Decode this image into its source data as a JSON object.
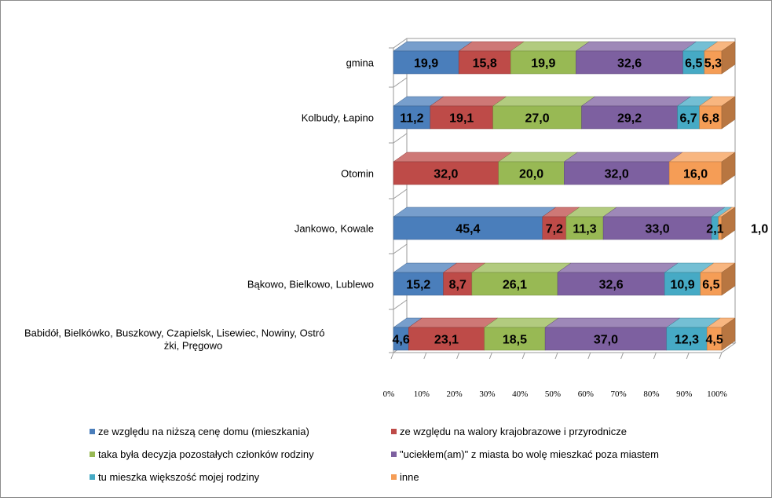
{
  "chart_data": {
    "type": "bar",
    "orientation": "horizontal",
    "stacked": "percent",
    "style": "3d",
    "title": "",
    "xlabel": "",
    "ylabel": "",
    "xlim": [
      0,
      100
    ],
    "x_ticks": [
      "0%",
      "10%",
      "20%",
      "30%",
      "40%",
      "50%",
      "60%",
      "70%",
      "80%",
      "90%",
      "100%"
    ],
    "categories": [
      "gmina",
      "Kolbudy, Łapino",
      "Otomin",
      "Jankowo, Kowale",
      "Bąkowo, Bielkowo, Lublewo",
      "Babidół, Bielkówko, Buszkowy, Czapielsk, Lisewiec, Nowiny, Ostróżki, Pręgowo"
    ],
    "category_lines": [
      [
        "gmina"
      ],
      [
        "Kolbudy, Łapino"
      ],
      [
        "Otomin"
      ],
      [
        "Jankowo, Kowale"
      ],
      [
        "Bąkowo, Bielkowo, Lublewo"
      ],
      [
        "Babidół,  Bielkówko,  Buszkowy,  Czapielsk,  Lisewiec, Nowiny, Ostró",
        "żki, Pręgowo"
      ]
    ],
    "series": [
      {
        "name": "ze względu na niższą cenę domu (mieszkania)",
        "color": "#4a7ebb",
        "values": [
          19.9,
          11.2,
          0,
          45.4,
          15.2,
          4.6
        ],
        "labels": [
          "19,9",
          "11,2",
          "",
          "45,4",
          "15,2",
          "4,6"
        ]
      },
      {
        "name": "ze względu na walory krajobrazowe i przyrodnicze",
        "color": "#be4b48",
        "values": [
          15.8,
          19.1,
          32.0,
          7.2,
          8.7,
          23.1
        ],
        "labels": [
          "15,8",
          "19,1",
          "32,0",
          "7,2",
          "8,7",
          "23,1"
        ]
      },
      {
        "name": "taka była decyzja pozostałych członków rodziny",
        "color": "#98b954",
        "values": [
          19.9,
          27.0,
          20.0,
          11.3,
          26.1,
          18.5
        ],
        "labels": [
          "19,9",
          "27,0",
          "20,0",
          "11,3",
          "26,1",
          "18,5"
        ]
      },
      {
        "name": "\"uciekłem(am)\" z miasta bo wolę mieszkać poza miastem",
        "color": "#7d60a0",
        "values": [
          32.6,
          29.2,
          32.0,
          33.0,
          32.6,
          37.0
        ],
        "labels": [
          "32,6",
          "29,2",
          "32,0",
          "33,0",
          "32,6",
          "37,0"
        ]
      },
      {
        "name": "tu mieszka większość mojej rodziny",
        "color": "#46aac5",
        "values": [
          6.5,
          6.7,
          0,
          2.1,
          10.9,
          12.3
        ],
        "labels": [
          "6,5",
          "6,7",
          "",
          "2,1",
          "10,9",
          "12,3"
        ]
      },
      {
        "name": "inne",
        "color": "#f59d56",
        "values": [
          5.3,
          6.8,
          16.0,
          1.0,
          6.5,
          4.5
        ],
        "labels": [
          "5,3",
          "6,8",
          "16,0",
          "1,0",
          "6,5",
          "4,5"
        ]
      }
    ],
    "legend_position": "bottom",
    "grid": false
  }
}
